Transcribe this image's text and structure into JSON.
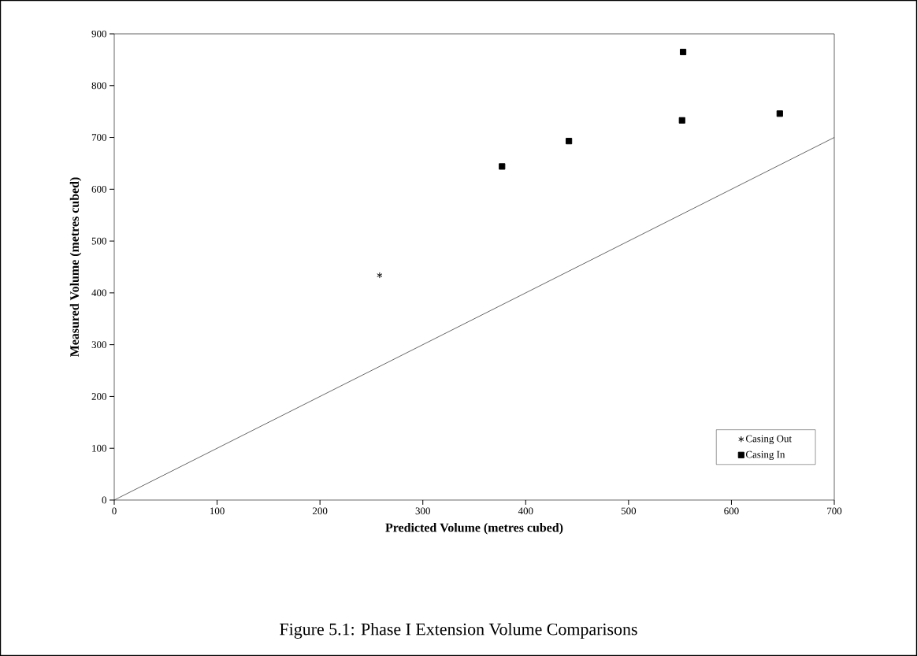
{
  "chart_data": {
    "type": "scatter",
    "title": "Figure 5.1:  Phase I Extension  Volume Comparisons",
    "xlabel": "Predicted Volume (metres cubed)",
    "ylabel": "Measured Volume (metres cubed)",
    "xlim": [
      0,
      700
    ],
    "ylim": [
      0,
      900
    ],
    "xticks": [
      0,
      100,
      200,
      300,
      400,
      500,
      600,
      700
    ],
    "yticks": [
      0,
      100,
      200,
      300,
      400,
      500,
      600,
      700,
      800,
      900
    ],
    "legend": "bottom right",
    "series": [
      {
        "name": "Casing Out",
        "color": "#000000",
        "marker": "cross",
        "x": [
          258
        ],
        "values": [
          434
        ]
      },
      {
        "name": "Casing In",
        "color": "#000000",
        "marker": "square",
        "x": [
          377,
          442,
          553,
          552,
          647
        ],
        "values": [
          644,
          693,
          865,
          733,
          746
        ]
      },
      {
        "type": "line",
        "color": "#000000",
        "marker": "none",
        "x": [
          0,
          700
        ],
        "values": [
          0,
          700
        ]
      }
    ]
  }
}
